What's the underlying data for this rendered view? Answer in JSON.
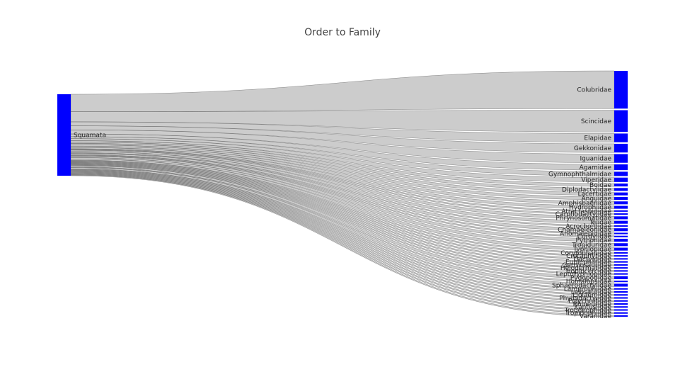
{
  "chart_data": {
    "type": "sankey",
    "title": "Order to Family",
    "node_color": "#0000ff",
    "link_color": "#000000",
    "source": {
      "name": "Squamata"
    },
    "targets": [
      {
        "name": "Colubridae",
        "value": 26
      },
      {
        "name": "Scincidae",
        "value": 15
      },
      {
        "name": "Elapidae",
        "value": 6
      },
      {
        "name": "Gekkonidae",
        "value": 6
      },
      {
        "name": "Iguanidae",
        "value": 6
      },
      {
        "name": "Agamidae",
        "value": 4
      },
      {
        "name": "Gymnophthalmidae",
        "value": 3
      },
      {
        "name": "Viperidae",
        "value": 3
      },
      {
        "name": "Boidae",
        "value": 2
      },
      {
        "name": "Diplodactylidae",
        "value": 2
      },
      {
        "name": "Lacertidae",
        "value": 2
      },
      {
        "name": "Anguidae",
        "value": 2
      },
      {
        "name": "Amphisbaenidae",
        "value": 2
      },
      {
        "name": "Hydrophiidae",
        "value": 2
      },
      {
        "name": "Atractaspididae",
        "value": 1
      },
      {
        "name": "Carphodactylidae",
        "value": 1
      },
      {
        "name": "Phrynosomatidae",
        "value": 2
      },
      {
        "name": "Teiidae",
        "value": 2
      },
      {
        "name": "Acrochordidae",
        "value": 1
      },
      {
        "name": "Chamaeleonidae",
        "value": 2
      },
      {
        "name": "Anomalepididae",
        "value": 1
      },
      {
        "name": "Cordylidae",
        "value": 1
      },
      {
        "name": "Pythonidae",
        "value": 2
      },
      {
        "name": "Tropiduridae",
        "value": 2
      },
      {
        "name": "Typhlopidae",
        "value": 2
      },
      {
        "name": "Corytophanidae",
        "value": 1
      },
      {
        "name": "Crotaphytidae",
        "value": 1
      },
      {
        "name": "Dactyloidae",
        "value": 1
      },
      {
        "name": "Eublepharidae",
        "value": 1
      },
      {
        "name": "Gerrhosauridae",
        "value": 1
      },
      {
        "name": "Helodermatidae",
        "value": 1
      },
      {
        "name": "Hoplocercidae",
        "value": 1
      },
      {
        "name": "Leptotyphlopidae",
        "value": 1
      },
      {
        "name": "Pygopodidae",
        "value": 2
      },
      {
        "name": "Homalopsidae",
        "value": 1
      },
      {
        "name": "Sphaerodactylidae",
        "value": 2
      },
      {
        "name": "Lamprophiidae",
        "value": 1
      },
      {
        "name": "Leiosauridae",
        "value": 1
      },
      {
        "name": "Liolaemidae",
        "value": 1
      },
      {
        "name": "Phyllodactylidae",
        "value": 1
      },
      {
        "name": "Polychrotidae",
        "value": 1
      },
      {
        "name": "Rhineuridae",
        "value": 1
      },
      {
        "name": "Xantusiidae",
        "value": 1
      },
      {
        "name": "Trogonophidae",
        "value": 1
      },
      {
        "name": "Tropidophiidae",
        "value": 1
      },
      {
        "name": "Varanidae",
        "value": 1
      }
    ]
  }
}
